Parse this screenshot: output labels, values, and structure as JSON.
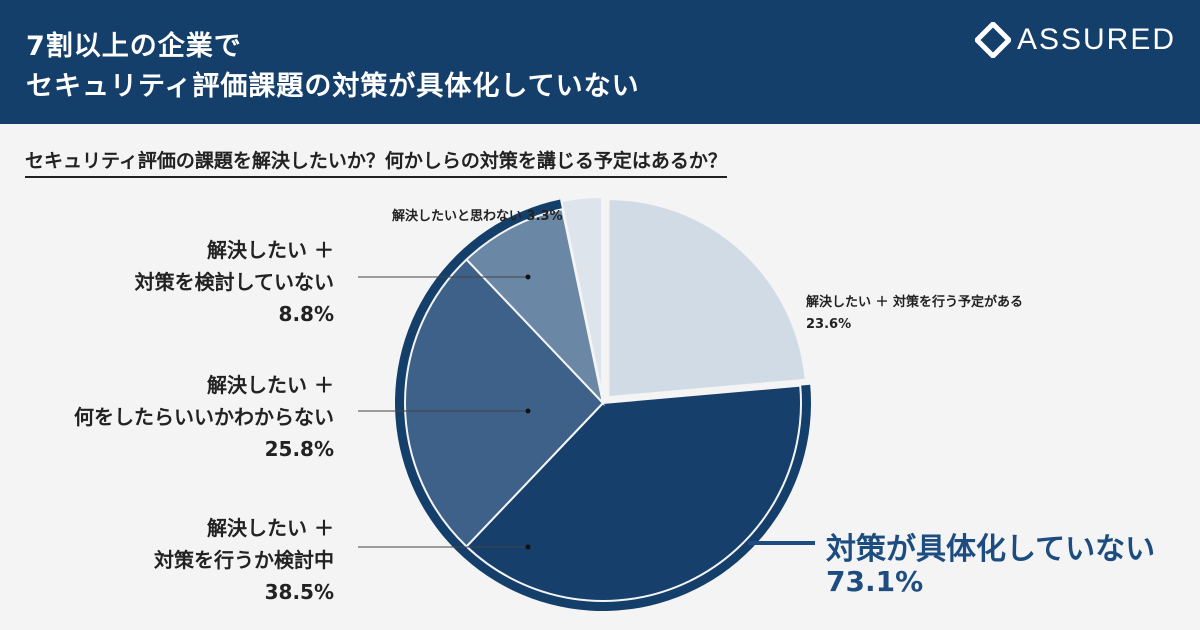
{
  "header": {
    "title_line1": "7割以上の企業で",
    "title_line2": "セキュリティ評価課題の対策が具体化していない",
    "brand": "ASSURED"
  },
  "question": "セキュリティ評価の課題を解決したいか？何かしらの対策を講じる予定はあるか？",
  "highlight": {
    "name": "対策が具体化していない",
    "value": "73.1%"
  },
  "colors": {
    "header_bg": "#153f6b",
    "accent": "#1d4d80"
  },
  "chart_data": {
    "type": "pie",
    "title": "セキュリティ評価の課題を解決したいか？何かしらの対策を講じる予定はあるか？",
    "slices": [
      {
        "label_lines": [
          "解決したい ＋ 対策を行う予定がある"
        ],
        "value": 23.6,
        "value_label": "23.6%",
        "color": "#d1dbe6"
      },
      {
        "label_lines": [
          "解決したい ＋",
          "対策を行うか検討中"
        ],
        "value": 38.5,
        "value_label": "38.5%",
        "color": "#163f6b"
      },
      {
        "label_lines": [
          "解決したい ＋",
          "何をしたらいいかわからない"
        ],
        "value": 25.8,
        "value_label": "25.8%",
        "color": "#3e6189"
      },
      {
        "label_lines": [
          "解決したい ＋",
          "対策を検討していない"
        ],
        "value": 8.8,
        "value_label": "8.8%",
        "color": "#6a88a6"
      },
      {
        "label_lines": [
          "解決したいと思わない"
        ],
        "value": 3.3,
        "value_label": "3.3%",
        "color": "#dde4ec"
      }
    ],
    "grouped": {
      "label": "対策が具体化していない",
      "value": 73.1
    }
  }
}
